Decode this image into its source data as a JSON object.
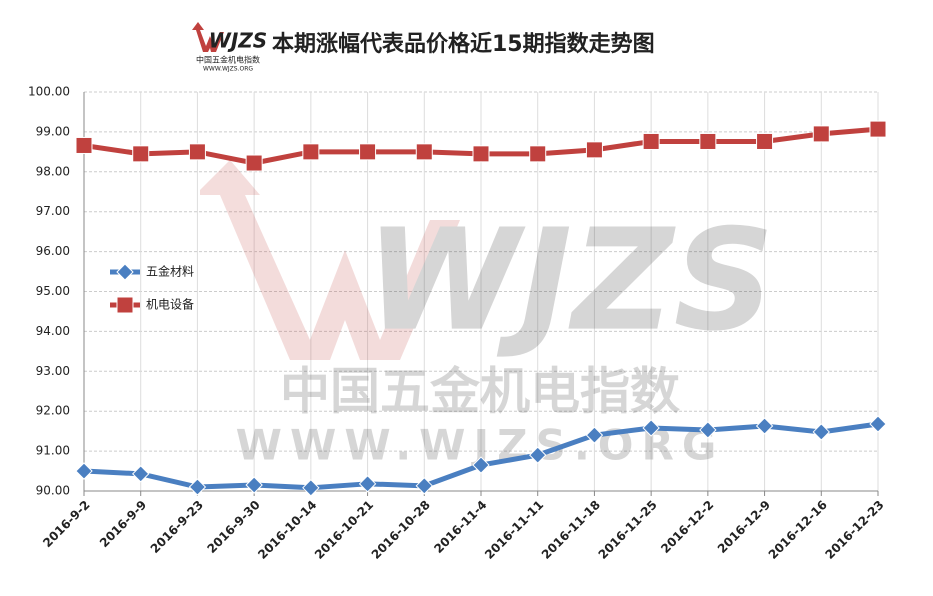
{
  "logo": {
    "text": "WJZS",
    "subtitle": "中国五金机电指数",
    "url": "WWW.WJZS.ORG"
  },
  "chart_data": {
    "type": "line",
    "title": "本期涨幅代表品价格近15期指数走势图",
    "categories": [
      "2016-9-2",
      "2016-9-9",
      "2016-9-23",
      "2016-9-30",
      "2016-10-14",
      "2016-10-21",
      "2016-10-28",
      "2016-11-4",
      "2016-11-11",
      "2016-11-18",
      "2016-11-25",
      "2016-12-2",
      "2016-12-9",
      "2016-12-16",
      "2016-12-23"
    ],
    "series": [
      {
        "name": "五金材料",
        "color": "#4a7fc1",
        "marker": "diamond",
        "values": [
          90.5,
          90.43,
          90.1,
          90.15,
          90.08,
          90.18,
          90.13,
          90.65,
          90.9,
          91.4,
          91.58,
          91.53,
          91.63,
          91.48,
          91.68
        ]
      },
      {
        "name": "机电设备",
        "color": "#c0413e",
        "marker": "square",
        "values": [
          98.66,
          98.45,
          98.5,
          98.22,
          98.5,
          98.5,
          98.5,
          98.45,
          98.45,
          98.55,
          98.76,
          98.76,
          98.76,
          98.95,
          99.07
        ]
      }
    ],
    "ylim": [
      90,
      100
    ],
    "yticks": [
      {
        "value": 90,
        "label": "90.00"
      },
      {
        "value": 91,
        "label": "91.00"
      },
      {
        "value": 92,
        "label": "92.00"
      },
      {
        "value": 93,
        "label": "93.00"
      },
      {
        "value": 94,
        "label": "94.00"
      },
      {
        "value": 95,
        "label": "95.00"
      },
      {
        "value": 96,
        "label": "96.00"
      },
      {
        "value": 97,
        "label": "97.00"
      },
      {
        "value": 98,
        "label": "98.00"
      },
      {
        "value": 99,
        "label": "99.00"
      },
      {
        "value": 100,
        "label": "100.00"
      }
    ],
    "grid": true,
    "legend": "left"
  }
}
